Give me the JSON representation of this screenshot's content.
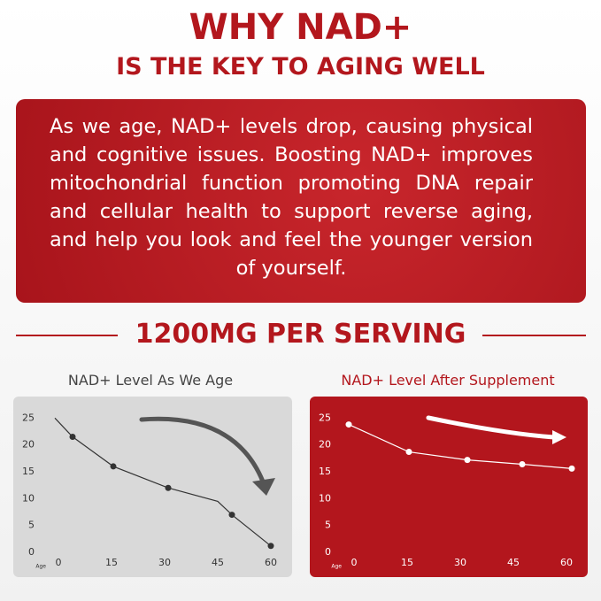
{
  "header": {
    "title": "WHY NAD+",
    "subtitle": "IS THE KEY TO AGING WELL"
  },
  "body": "As we age, NAD+ levels drop, causing physical and cognitive issues. Boosting NAD+ improves mitochondrial function promoting DNA repair and cellular health to support reverse aging, and help you look and feel the younger version of yourself.",
  "section_heading": "1200MG PER SERVING",
  "chart_data": [
    {
      "type": "line",
      "title": "NAD+ Level As We Age",
      "x_label": "Age",
      "background": "#d9d9d9",
      "color": "#333333",
      "text_color": "#333333",
      "x": [
        -1,
        4,
        15.5,
        31,
        45,
        49,
        60
      ],
      "values": [
        25,
        21.5,
        16,
        12,
        9.5,
        7,
        1.2
      ],
      "markers": [
        false,
        true,
        true,
        true,
        false,
        true,
        true
      ],
      "xlim": [
        -12.75,
        66
      ],
      "ylim": [
        -4.6,
        29
      ],
      "xticks": [
        0,
        15,
        30,
        45,
        60
      ],
      "yticks": [
        0,
        5,
        10,
        15,
        20,
        25
      ]
    },
    {
      "type": "line",
      "title": "NAD+ Level After Supplement",
      "x_label": "Age",
      "background": "#b3161d",
      "color": "#ffffff",
      "text_color": "#ffffff",
      "x": [
        -1.5,
        15.5,
        32,
        47.5,
        61.5
      ],
      "values": [
        23.8,
        18.7,
        17.2,
        16.4,
        15.6
      ],
      "markers": [
        true,
        true,
        true,
        true,
        true
      ],
      "xlim": [
        -12.5,
        66
      ],
      "ylim": [
        -4.6,
        29
      ],
      "xticks": [
        0,
        15,
        30,
        45,
        60
      ],
      "yticks": [
        0,
        5,
        10,
        15,
        20,
        25
      ]
    }
  ]
}
